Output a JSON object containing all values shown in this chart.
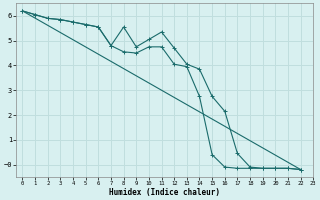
{
  "xlabel": "Humidex (Indice chaleur)",
  "background_color": "#d8f0f0",
  "grid_color": "#c0dede",
  "line_color": "#1a6b6b",
  "xlim": [
    -0.5,
    23
  ],
  "ylim": [
    -0.5,
    6.5
  ],
  "xticks": [
    0,
    1,
    2,
    3,
    4,
    5,
    6,
    7,
    8,
    9,
    10,
    11,
    12,
    13,
    14,
    15,
    16,
    17,
    18,
    19,
    20,
    21,
    22,
    23
  ],
  "yticks": [
    0,
    1,
    2,
    3,
    4,
    5,
    6
  ],
  "ytick_labels": [
    "−0",
    "1",
    "2",
    "3",
    "4",
    "5",
    "6"
  ],
  "line1_x": [
    0,
    1,
    2,
    3,
    4,
    5,
    6,
    7,
    8,
    9,
    10,
    11,
    12,
    13,
    14,
    15,
    16,
    17,
    18,
    19,
    20,
    21,
    22
  ],
  "line1_y": [
    6.2,
    6.05,
    5.9,
    5.85,
    5.75,
    5.65,
    5.55,
    4.8,
    5.55,
    4.75,
    5.05,
    5.35,
    4.7,
    4.05,
    3.85,
    2.75,
    2.15,
    0.45,
    -0.1,
    -0.15,
    -0.15,
    -0.15,
    -0.2
  ],
  "line2_x": [
    0,
    1,
    2,
    3,
    4,
    5,
    6,
    7,
    8,
    9,
    10,
    11,
    12,
    13,
    14,
    15,
    16,
    17,
    18,
    19,
    20,
    21,
    22
  ],
  "line2_y": [
    6.2,
    6.05,
    5.9,
    5.85,
    5.75,
    5.65,
    5.55,
    4.8,
    4.55,
    4.5,
    4.75,
    4.75,
    4.05,
    3.95,
    2.75,
    0.4,
    -0.1,
    -0.15,
    -0.15,
    -0.15,
    -0.15,
    -0.15,
    -0.2
  ],
  "line3_x": [
    0,
    22
  ],
  "line3_y": [
    6.2,
    -0.2
  ],
  "lw": 0.8,
  "markersize": 2.5
}
